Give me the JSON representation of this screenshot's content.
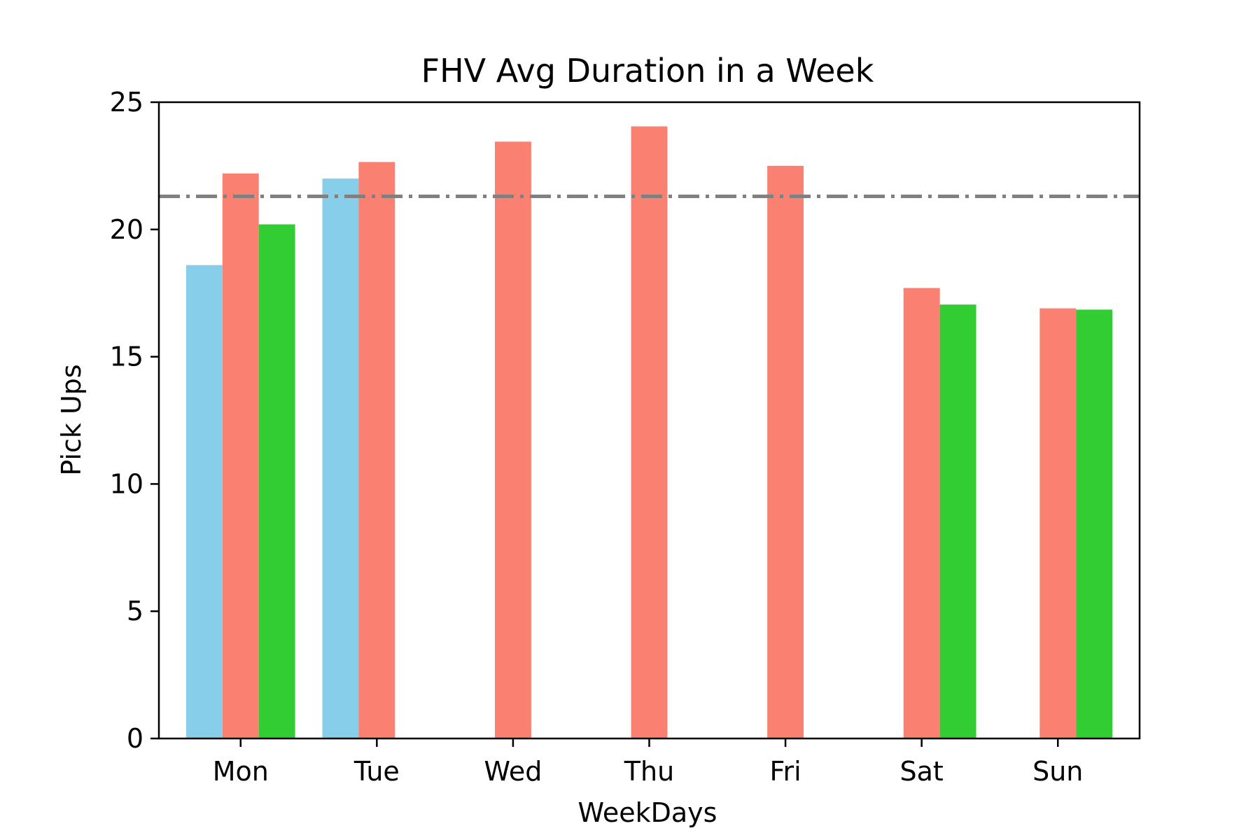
{
  "chart_data": {
    "type": "bar",
    "title": "FHV Avg Duration in a Week",
    "xlabel": "WeekDays",
    "ylabel": "Pick Ups",
    "categories": [
      "Mon",
      "Tue",
      "Wed",
      "Thu",
      "Fri",
      "Sat",
      "Sun"
    ],
    "ylim": [
      0,
      25
    ],
    "yticks": [
      "0",
      "5",
      "10",
      "15",
      "20",
      "25"
    ],
    "grid": false,
    "legend": "none",
    "series": [
      {
        "color": "#87ceeb",
        "values": [
          18.6,
          22.0,
          null,
          null,
          null,
          null,
          null
        ]
      },
      {
        "color": "#fa8072",
        "values": [
          22.2,
          22.65,
          23.45,
          24.05,
          22.5,
          17.7,
          16.9
        ]
      },
      {
        "color": "#32cd32",
        "values": [
          20.2,
          null,
          null,
          null,
          null,
          17.05,
          16.85
        ]
      }
    ],
    "reference_line": {
      "value": 21.3,
      "color": "#808080",
      "style": "dashdot"
    }
  }
}
